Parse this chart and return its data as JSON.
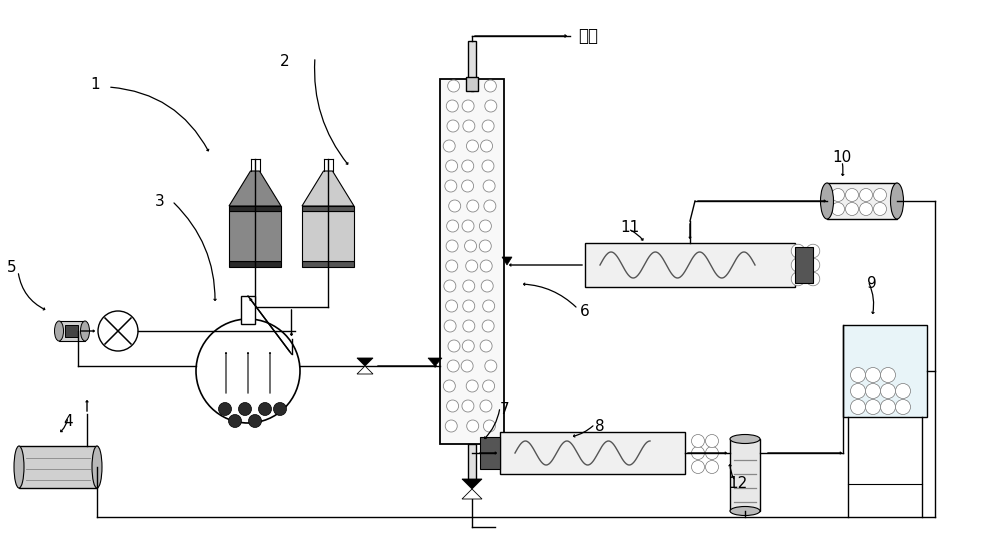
{
  "bg_color": "#ffffff",
  "line_color": "#000000",
  "germane_label": "锗烷",
  "labels": [
    [
      "1",
      0.95,
      4.55
    ],
    [
      "2",
      2.85,
      4.78
    ],
    [
      "3",
      1.6,
      3.38
    ],
    [
      "4",
      0.68,
      1.18
    ],
    [
      "5",
      0.12,
      2.72
    ],
    [
      "6",
      5.85,
      2.28
    ],
    [
      "7",
      5.05,
      1.3
    ],
    [
      "8",
      6.0,
      1.12
    ],
    [
      "9",
      8.72,
      2.55
    ],
    [
      "10",
      8.42,
      3.82
    ],
    [
      "11",
      6.3,
      3.12
    ],
    [
      "12",
      7.38,
      0.55
    ]
  ]
}
